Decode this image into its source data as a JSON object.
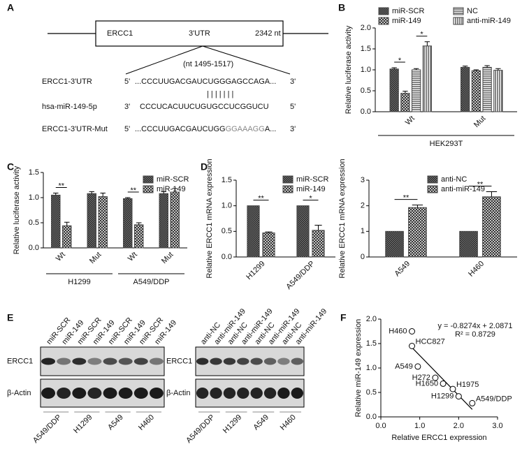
{
  "panel_labels": [
    "A",
    "B",
    "C",
    "D",
    "E",
    "F"
  ],
  "diagram": {
    "gene": "ERCC1",
    "region": "3'UTR",
    "length": "2342 nt",
    "site": "(nt 1495-1517)",
    "rows": [
      {
        "name": "ERCC1-3'UTR",
        "left": "5'",
        "seq": [
          "...CCCUUGACGAUCUGGGAGCCAGA..."
        ],
        "right": "3'"
      },
      {
        "name": "hsa-miR-149-5p",
        "left": "3'",
        "seq": [
          "CCCUCACUUCUGUGCCUCGGUCU"
        ],
        "right": "5'"
      },
      {
        "name": "ERCC1-3'UTR-Mut",
        "left": "5'",
        "seq": [
          "...CCCUUGACGAUCUGG",
          "GGAAAGG",
          "A..."
        ],
        "right": "3'"
      }
    ],
    "pairing": "| | | | | | |"
  },
  "blots": [
    {
      "lanes": [
        "miR-SCR",
        "miR-149",
        "miR-SCR",
        "miR-149",
        "miR-SCR",
        "miR-149",
        "miR-SCR",
        "miR-149"
      ],
      "rows": [
        "ERCC1",
        "β-Actin"
      ],
      "groups": [
        "A549/DDP",
        "H1299",
        "A549",
        "H460"
      ]
    },
    {
      "lanes": [
        "anti-NC",
        "anti-miR-149",
        "anti-NC",
        "anti-miR-149",
        "anti-NC",
        "anti-miR-149",
        "anti-NC",
        "anti-miR-149"
      ],
      "rows": [
        "ERCC1",
        "β-Actin"
      ],
      "groups": [
        "A549/DDP",
        "H1299",
        "A549",
        "H460"
      ]
    }
  ],
  "chart_data": [
    {
      "type": "bar",
      "ylabel": "Relative luciferase activity",
      "categories": [
        "Wt",
        "Mut"
      ],
      "series": [
        {
          "name": "miR-SCR",
          "color": "#444",
          "pattern": "checker",
          "values": [
            1.02,
            1.06
          ],
          "errors": [
            0.03,
            0.03
          ]
        },
        {
          "name": "miR-149",
          "color": "#444",
          "pattern": "cross",
          "values": [
            0.44,
            0.98
          ],
          "errors": [
            0.05,
            0.02
          ]
        },
        {
          "name": "NC",
          "color": "#444",
          "pattern": "hlines",
          "values": [
            1.0,
            1.06
          ],
          "errors": [
            0.03,
            0.04
          ]
        },
        {
          "name": "anti-miR-149",
          "color": "#444",
          "pattern": "vlines",
          "values": [
            1.57,
            0.99
          ],
          "errors": [
            0.1,
            0.04
          ]
        }
      ],
      "groups": [
        {
          "label": "HEK293T",
          "categories": [
            0,
            1
          ]
        }
      ],
      "annotations": [
        {
          "text": "*",
          "category": 0,
          "series": [
            0,
            1
          ]
        },
        {
          "text": "*",
          "category": 0,
          "series": [
            2,
            3
          ]
        }
      ],
      "ylim": [
        0,
        2
      ],
      "yticks": [
        {
          "value": 0,
          "label": "0.0"
        },
        0.5,
        {
          "value": 1,
          "label": "1.0"
        },
        1.5,
        {
          "value": 2,
          "label": "2.0"
        }
      ]
    },
    {
      "type": "bar",
      "ylabel": "Relative luciferase activity",
      "categories": [
        "Wt",
        "Mut",
        "Wt",
        "Mut"
      ],
      "series": [
        {
          "name": "miR-SCR",
          "color": "#444",
          "pattern": "checker",
          "values": [
            1.05,
            1.08,
            0.98,
            1.08
          ],
          "errors": [
            0.04,
            0.04,
            0.02,
            0.04
          ]
        },
        {
          "name": "miR-149",
          "color": "#444",
          "pattern": "cross",
          "values": [
            0.44,
            1.02,
            0.46,
            1.11
          ],
          "errors": [
            0.07,
            0.07,
            0.04,
            0.07
          ]
        }
      ],
      "groups": [
        {
          "label": "H1299",
          "categories": [
            0,
            1
          ]
        },
        {
          "label": "A549/DDP",
          "categories": [
            2,
            3
          ]
        }
      ],
      "annotations": [
        {
          "text": "**",
          "category": 0,
          "series": [
            0,
            1
          ]
        },
        {
          "text": "**",
          "category": 2,
          "series": [
            0,
            1
          ]
        }
      ],
      "ylim": [
        0,
        1.5
      ],
      "yticks": [
        {
          "value": 0,
          "label": "0.0"
        },
        0.5,
        {
          "value": 1,
          "label": "1.0"
        },
        1.5
      ]
    },
    {
      "type": "bar",
      "ylabel": "Relative ERCC1 mRNA expression",
      "categories": [
        "H1299",
        "A549/DDP"
      ],
      "series": [
        {
          "name": "miR-SCR",
          "color": "#444",
          "pattern": "checker",
          "values": [
            1.0,
            1.0
          ]
        },
        {
          "name": "miR-149",
          "color": "#444",
          "pattern": "cross",
          "values": [
            0.47,
            0.52
          ],
          "errors": [
            0.02,
            0.1
          ]
        }
      ],
      "annotations": [
        {
          "text": "**",
          "category": 0,
          "series": [
            0,
            1
          ]
        },
        {
          "text": "*",
          "category": 1,
          "series": [
            0,
            1
          ]
        }
      ],
      "ylim": [
        0,
        1.5
      ],
      "yticks": [
        {
          "value": 0,
          "label": "0.0"
        },
        0.5,
        {
          "value": 1,
          "label": "1.0"
        },
        1.5
      ]
    },
    {
      "type": "bar",
      "ylabel": "Relative ERCC1 mRNA expression",
      "categories": [
        "A549",
        "H460"
      ],
      "series": [
        {
          "name": "anti-NC",
          "color": "#444",
          "pattern": "checker",
          "values": [
            1.0,
            1.0
          ]
        },
        {
          "name": "anti-miR-149",
          "color": "#444",
          "pattern": "cross",
          "values": [
            1.93,
            2.35
          ],
          "errors": [
            0.1,
            0.2
          ]
        }
      ],
      "annotations": [
        {
          "text": "**",
          "category": 0,
          "series": [
            0,
            1
          ]
        },
        {
          "text": "**",
          "category": 1,
          "series": [
            0,
            1
          ]
        }
      ],
      "ylim": [
        0,
        3
      ],
      "yticks": [
        0,
        1,
        2,
        3
      ]
    },
    {
      "type": "scatter",
      "xlabel": "Relative ERCC1 expression",
      "ylabel": "Relative miR-149 expression",
      "labels": [
        "H460",
        "HCC827",
        "A549",
        "H272",
        "H1650",
        "H1975",
        "H1299",
        "A549/DDP"
      ],
      "x": [
        0.8,
        0.8,
        0.95,
        1.4,
        1.6,
        1.85,
        2.0,
        2.35
      ],
      "values": [
        1.75,
        1.45,
        1.03,
        0.8,
        0.68,
        0.57,
        0.42,
        0.28
      ],
      "trendline": true,
      "annotations": [
        "y = -0.8274x + 2.0871",
        "R² = 0.8729"
      ],
      "xlim": [
        0,
        3
      ],
      "xticks": [
        {
          "value": 0,
          "label": "0.0"
        },
        {
          "value": 1,
          "label": "1.0"
        },
        {
          "value": 2,
          "label": "2.0"
        },
        {
          "value": 3,
          "label": "3.0"
        }
      ],
      "ylim": [
        0,
        2
      ],
      "yticks": [
        {
          "value": 0,
          "label": "0.0"
        },
        0.5,
        {
          "value": 1,
          "label": "1.0"
        },
        1.5,
        {
          "value": 2,
          "label": "2.0"
        }
      ]
    }
  ]
}
